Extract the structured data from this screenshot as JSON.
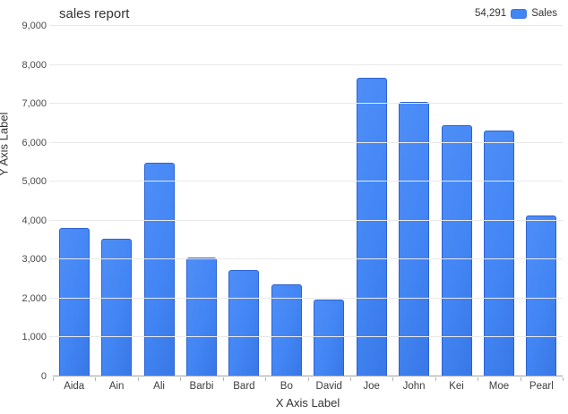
{
  "header": {
    "title": "sales report"
  },
  "legend": {
    "total": "54,291",
    "label": "Sales",
    "swatch_color": "#4285f4"
  },
  "chart_data": {
    "type": "bar",
    "title": "sales report",
    "xlabel": "X Axis Label",
    "ylabel": "Y Axis Label",
    "categories": [
      "Aida",
      "Ain",
      "Ali",
      "Barbi",
      "Bard",
      "Bo",
      "David",
      "Joe",
      "John",
      "Kei",
      "Moe",
      "Pearl"
    ],
    "series": [
      {
        "name": "Sales",
        "legend_total": "54,291",
        "values": [
          3790,
          3520,
          5470,
          3030,
          2710,
          2340,
          1951,
          7650,
          7030,
          6420,
          6280,
          4100
        ]
      }
    ],
    "ylim": [
      0,
      9000
    ],
    "ytick_step": 1000,
    "grid": "horizontal",
    "legend_position": "top-right",
    "bar_color": "#4285f4",
    "bar_border_color": "#2d62d3",
    "gridline_color": "#e9e9e9",
    "axis_line_color": "#a3a3a3"
  }
}
